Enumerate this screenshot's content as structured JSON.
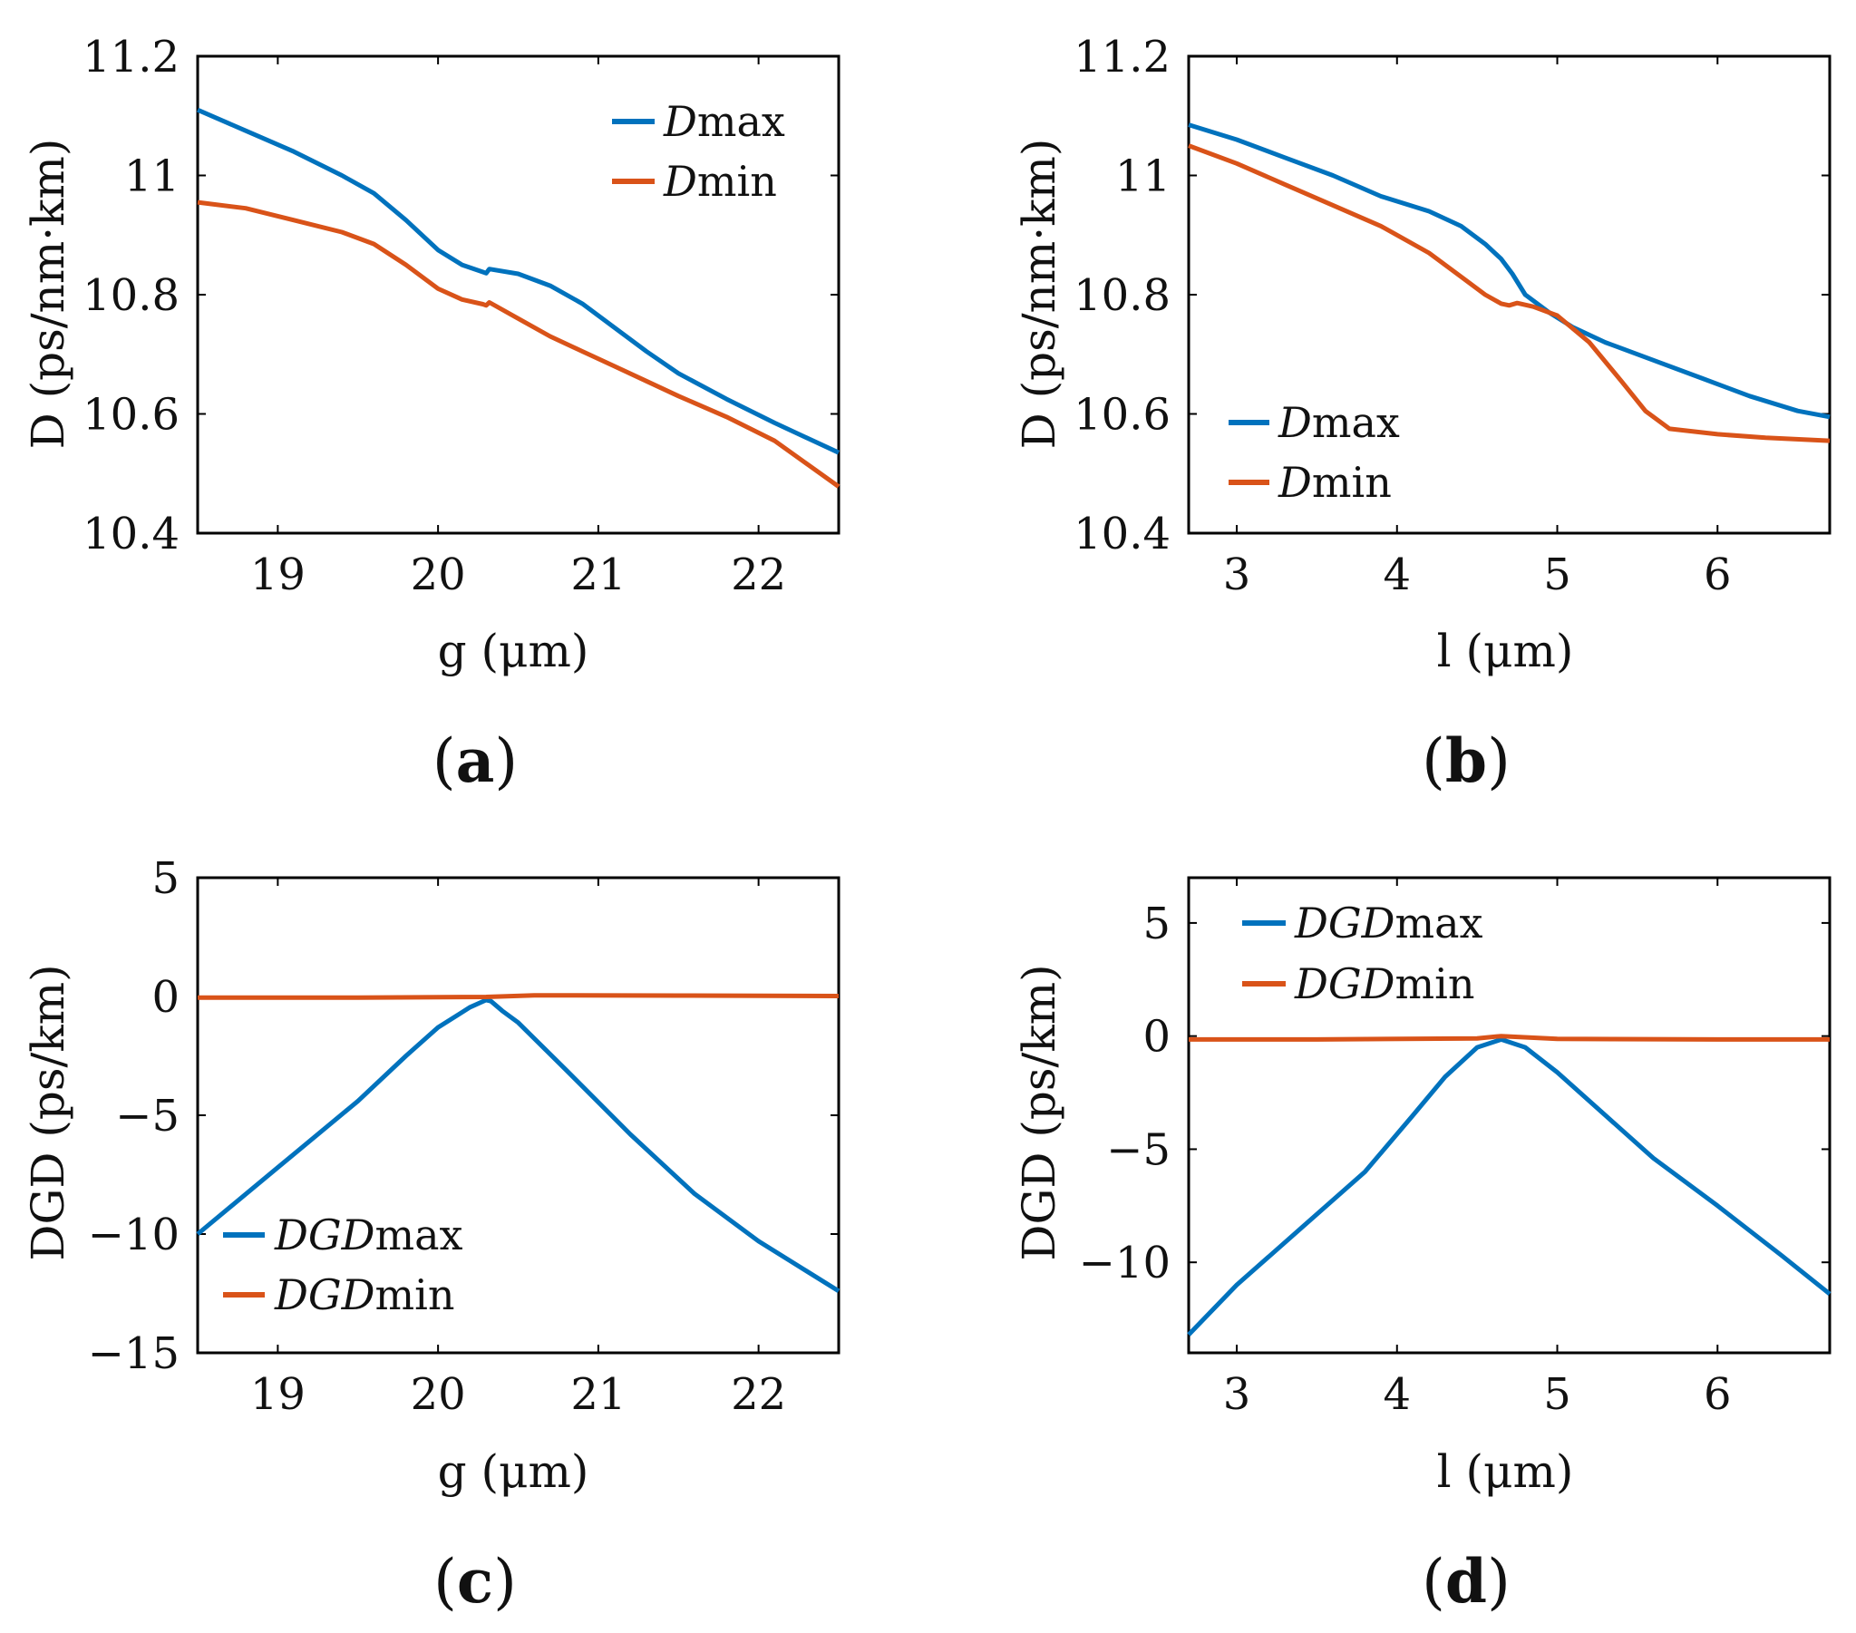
{
  "colors": {
    "series_1": "#0072BD",
    "series_2": "#D95319",
    "axis": "#000000"
  },
  "chart_data": [
    {
      "type": "line",
      "panel": "a",
      "xlabel": "g (μm)",
      "ylabel": "D (ps/nm·km)",
      "xlim": [
        18.5,
        22.5
      ],
      "ylim": [
        10.4,
        11.2
      ],
      "xticks": [
        19,
        20,
        21,
        22
      ],
      "xtick_labels": [
        "19",
        "20",
        "21",
        "22"
      ],
      "yticks": [
        10.4,
        10.6,
        10.8,
        11,
        11.2
      ],
      "ytick_labels": [
        "10.4",
        "10.6",
        "10.8",
        "11",
        "11.2"
      ],
      "legend_position": "top-right",
      "series": [
        {
          "name": "Dmax",
          "base": "D",
          "sub": "max",
          "x": [
            18.5,
            18.8,
            19.1,
            19.4,
            19.6,
            19.8,
            20.0,
            20.15,
            20.28,
            20.3,
            20.32,
            20.5,
            20.7,
            20.9,
            21.1,
            21.3,
            21.5,
            21.8,
            22.1,
            22.5
          ],
          "y": [
            11.11,
            11.075,
            11.04,
            11.0,
            10.97,
            10.925,
            10.875,
            10.85,
            10.838,
            10.836,
            10.843,
            10.835,
            10.815,
            10.785,
            10.745,
            10.705,
            10.668,
            10.625,
            10.585,
            10.535
          ]
        },
        {
          "name": "Dmin",
          "base": "D",
          "sub": "min",
          "x": [
            18.5,
            18.8,
            19.1,
            19.4,
            19.6,
            19.8,
            20.0,
            20.15,
            20.28,
            20.3,
            20.32,
            20.5,
            20.7,
            20.9,
            21.1,
            21.3,
            21.5,
            21.8,
            22.1,
            22.5
          ],
          "y": [
            10.955,
            10.945,
            10.925,
            10.905,
            10.885,
            10.85,
            10.81,
            10.792,
            10.784,
            10.782,
            10.787,
            10.76,
            10.73,
            10.705,
            10.68,
            10.655,
            10.63,
            10.595,
            10.555,
            10.478
          ]
        }
      ]
    },
    {
      "type": "line",
      "panel": "b",
      "xlabel": "l (μm)",
      "ylabel": "D (ps/nm·km)",
      "xlim": [
        2.7,
        6.7
      ],
      "ylim": [
        10.4,
        11.2
      ],
      "xticks": [
        3,
        4,
        5,
        6
      ],
      "xtick_labels": [
        "3",
        "4",
        "5",
        "6"
      ],
      "yticks": [
        10.4,
        10.6,
        10.8,
        11,
        11.2
      ],
      "ytick_labels": [
        "10.4",
        "10.6",
        "10.8",
        "11",
        "11.2"
      ],
      "legend_position": "bottom-left",
      "series": [
        {
          "name": "Dmax",
          "base": "D",
          "sub": "max",
          "x": [
            2.7,
            3.0,
            3.3,
            3.6,
            3.9,
            4.2,
            4.4,
            4.55,
            4.65,
            4.72,
            4.8,
            4.95,
            5.1,
            5.3,
            5.6,
            5.9,
            6.2,
            6.5,
            6.7
          ],
          "y": [
            11.085,
            11.06,
            11.03,
            11.0,
            10.965,
            10.94,
            10.915,
            10.885,
            10.86,
            10.835,
            10.8,
            10.77,
            10.745,
            10.72,
            10.69,
            10.66,
            10.63,
            10.605,
            10.595
          ]
        },
        {
          "name": "Dmin",
          "base": "D",
          "sub": "min",
          "x": [
            2.7,
            3.0,
            3.3,
            3.6,
            3.9,
            4.2,
            4.4,
            4.55,
            4.65,
            4.7,
            4.75,
            4.85,
            5.0,
            5.2,
            5.4,
            5.55,
            5.7,
            6.0,
            6.3,
            6.7
          ],
          "y": [
            11.05,
            11.02,
            10.985,
            10.95,
            10.915,
            10.87,
            10.83,
            10.8,
            10.785,
            10.782,
            10.786,
            10.78,
            10.765,
            10.72,
            10.655,
            10.605,
            10.575,
            10.566,
            10.56,
            10.555
          ]
        }
      ]
    },
    {
      "type": "line",
      "panel": "c",
      "xlabel": "g (μm)",
      "ylabel": "DGD (ps/km)",
      "xlim": [
        18.5,
        22.5
      ],
      "ylim": [
        -15,
        5
      ],
      "xticks": [
        19,
        20,
        21,
        22
      ],
      "xtick_labels": [
        "19",
        "20",
        "21",
        "22"
      ],
      "yticks": [
        -15,
        -10,
        -5,
        0,
        5
      ],
      "ytick_labels": [
        "−15",
        "−10",
        "−5",
        "0",
        "5"
      ],
      "legend_position": "bottom-left",
      "series": [
        {
          "name": "DGDmax",
          "base": "DGD",
          "sub": "max",
          "x": [
            18.5,
            19.0,
            19.5,
            19.8,
            20.0,
            20.2,
            20.3,
            20.33,
            20.4,
            20.5,
            20.8,
            21.2,
            21.6,
            22.0,
            22.5
          ],
          "y": [
            -10.0,
            -7.2,
            -4.4,
            -2.5,
            -1.3,
            -0.45,
            -0.15,
            -0.2,
            -0.6,
            -1.1,
            -3.1,
            -5.8,
            -8.3,
            -10.3,
            -12.4
          ]
        },
        {
          "name": "DGDmin",
          "base": "DGD",
          "sub": "min",
          "x": [
            18.5,
            19.5,
            20.3,
            20.6,
            21.5,
            22.5
          ],
          "y": [
            -0.05,
            -0.05,
            -0.02,
            0.05,
            0.04,
            0.02
          ]
        }
      ]
    },
    {
      "type": "line",
      "panel": "d",
      "xlabel": "l (μm)",
      "ylabel": "DGD (ps/km)",
      "xlim": [
        2.7,
        6.7
      ],
      "ylim": [
        -14,
        7
      ],
      "xticks": [
        3,
        4,
        5,
        6
      ],
      "xtick_labels": [
        "3",
        "4",
        "5",
        "6"
      ],
      "yticks": [
        -10,
        -5,
        0,
        5
      ],
      "ytick_labels": [
        "−10",
        "−5",
        "0",
        "5"
      ],
      "legend_position": "top-left",
      "series": [
        {
          "name": "DGDmax",
          "base": "DGD",
          "sub": "max",
          "x": [
            2.7,
            3.0,
            3.4,
            3.8,
            4.1,
            4.3,
            4.5,
            4.65,
            4.8,
            5.0,
            5.3,
            5.6,
            6.0,
            6.4,
            6.7
          ],
          "y": [
            -13.2,
            -11.0,
            -8.5,
            -6.0,
            -3.5,
            -1.8,
            -0.5,
            -0.15,
            -0.5,
            -1.6,
            -3.5,
            -5.4,
            -7.5,
            -9.7,
            -11.4
          ]
        },
        {
          "name": "DGDmin",
          "base": "DGD",
          "sub": "min",
          "x": [
            2.7,
            3.5,
            4.5,
            4.65,
            5.0,
            6.0,
            6.7
          ],
          "y": [
            -0.15,
            -0.15,
            -0.1,
            0.0,
            -0.12,
            -0.15,
            -0.15
          ]
        }
      ]
    }
  ],
  "panel_labels": [
    "a",
    "b",
    "c",
    "d"
  ]
}
